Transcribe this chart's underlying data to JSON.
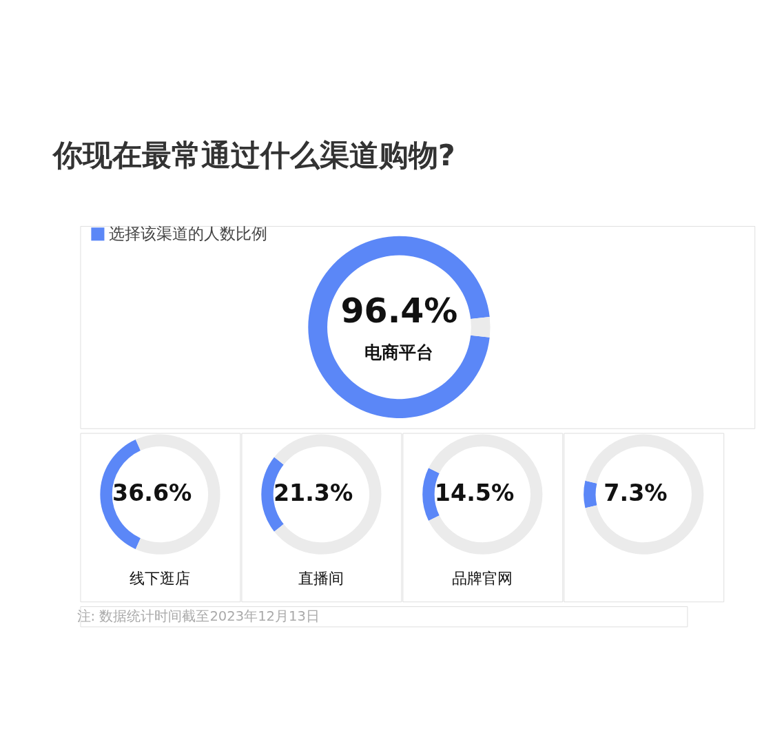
{
  "chart_data": [
    {
      "type": "donut",
      "title": "你现在最常通过什么渠道购物?",
      "subtitle": "电商平台",
      "legend": "top left",
      "categories": [
        "选择该渠道的人数比例",
        null
      ],
      "values": [
        96.4,
        3.6
      ],
      "colors": [
        "#5b87f7",
        "#ebebeb"
      ],
      "value_labels": [
        "96.4%",
        null
      ]
    },
    {
      "type": "donut",
      "subtitle": "线下逛店",
      "categories": [
        null,
        null
      ],
      "values": [
        36.6,
        63.4
      ],
      "colors": [
        "#5b87f7",
        "#ebebeb"
      ],
      "value_labels": [
        "36.6%",
        null
      ]
    },
    {
      "type": "donut",
      "subtitle": "直播间",
      "categories": [
        null,
        null
      ],
      "values": [
        21.3,
        78.7
      ],
      "colors": [
        "#5b87f7",
        "#ebebeb"
      ],
      "value_labels": [
        "21.3%",
        null
      ]
    },
    {
      "type": "donut",
      "subtitle": "品牌官网",
      "categories": [
        null,
        null
      ],
      "values": [
        14.5,
        85.5
      ],
      "colors": [
        "#5b87f7",
        "#ebebeb"
      ],
      "value_labels": [
        "14.5%",
        null
      ]
    },
    {
      "type": "donut",
      "categories": [
        null,
        null
      ],
      "values": [
        7.3,
        92.7
      ],
      "colors": [
        "#5b87f7",
        "#ebebeb"
      ],
      "value_labels": [
        "7.3%",
        null
      ],
      "annotations": [
        "注: 数据统计时间截至2023年12月13日"
      ]
    }
  ]
}
